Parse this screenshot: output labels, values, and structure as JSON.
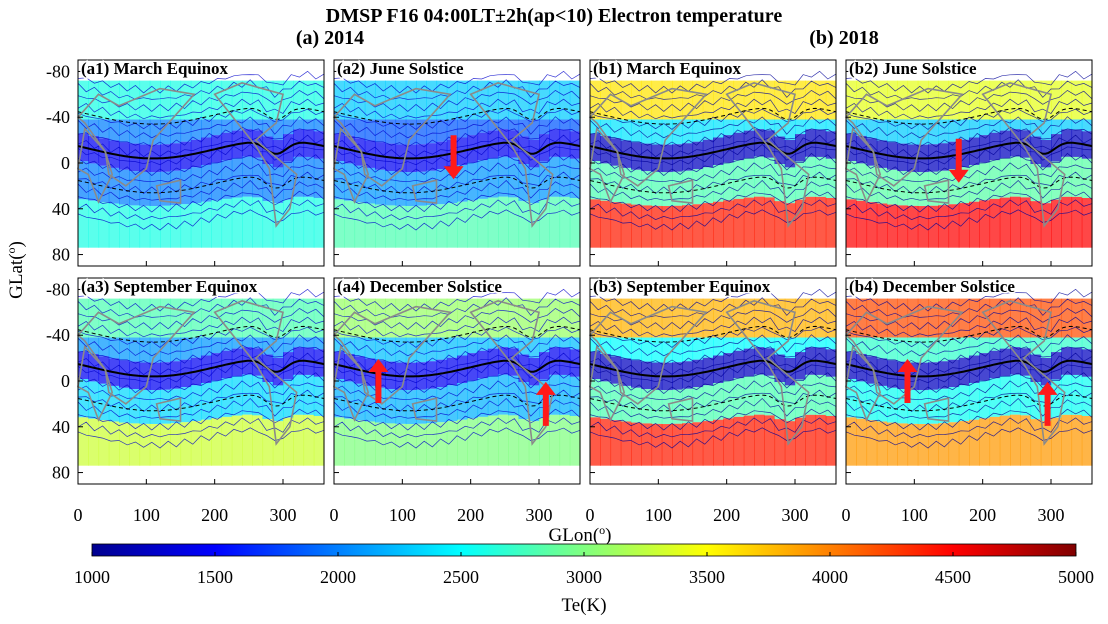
{
  "chart_data": {
    "type": "heatmap",
    "title": "DMSP F16 04:00LT±2h(ap<10) Electron temperature",
    "group_titles": [
      "(a) 2014",
      "(b) 2018"
    ],
    "xlabel": "GLon(o)",
    "ylabel": "GLat(o)",
    "x_ticks": [
      "0",
      "100",
      "200",
      "300"
    ],
    "y_ticks": [
      "-80",
      "-40",
      "0",
      "40",
      "80"
    ],
    "xlim": [
      0,
      360
    ],
    "ylim": [
      -90,
      90
    ],
    "y_axis_reversed": true,
    "colorbar": {
      "label": "Te(K)",
      "ticks": [
        "1000",
        "1500",
        "2000",
        "2500",
        "3000",
        "3500",
        "4000",
        "4500",
        "5000"
      ],
      "range": [
        1000,
        5000
      ],
      "colormap": "jet"
    },
    "panels": [
      {
        "id": "a1",
        "year": 2014,
        "label": "(a1) March Equinox",
        "mean_Te_K": 1700,
        "band_south_Te_K": 2600,
        "band_north_Te_K": 2600,
        "arrows": []
      },
      {
        "id": "a2",
        "year": 2014,
        "label": "(a2) June Solstice",
        "mean_Te_K": 1700,
        "band_south_Te_K": 2300,
        "band_north_Te_K": 2800,
        "arrows": [
          {
            "lon": 175,
            "lat": -5,
            "direction": "down"
          }
        ]
      },
      {
        "id": "a3",
        "year": 2014,
        "label": "(a3) September Equinox",
        "mean_Te_K": 1700,
        "band_south_Te_K": 2800,
        "band_north_Te_K": 3300,
        "arrows": []
      },
      {
        "id": "a4",
        "year": 2014,
        "label": "(a4) December Solstice",
        "mean_Te_K": 1700,
        "band_south_Te_K": 3100,
        "band_north_Te_K": 3000,
        "arrows": [
          {
            "lon": 65,
            "lat": 0,
            "direction": "up"
          },
          {
            "lon": 310,
            "lat": 20,
            "direction": "up"
          }
        ]
      },
      {
        "id": "b1",
        "year": 2018,
        "label": "(b1) March Equinox",
        "mean_Te_K": 1500,
        "band_south_Te_K": 3600,
        "band_north_Te_K": 4400,
        "arrows": []
      },
      {
        "id": "b2",
        "year": 2018,
        "label": "(b2) June Solstice",
        "mean_Te_K": 1500,
        "band_south_Te_K": 3400,
        "band_north_Te_K": 4500,
        "arrows": [
          {
            "lon": 165,
            "lat": -2,
            "direction": "down"
          }
        ]
      },
      {
        "id": "b3",
        "year": 2018,
        "label": "(b3) September Equinox",
        "mean_Te_K": 1500,
        "band_south_Te_K": 3800,
        "band_north_Te_K": 4400,
        "arrows": []
      },
      {
        "id": "b4",
        "year": 2018,
        "label": "(b4) December Solstice",
        "mean_Te_K": 1500,
        "band_south_Te_K": 4200,
        "band_north_Te_K": 3900,
        "arrows": [
          {
            "lon": 90,
            "lat": 0,
            "direction": "up"
          },
          {
            "lon": 295,
            "lat": 20,
            "direction": "up"
          }
        ]
      }
    ]
  }
}
